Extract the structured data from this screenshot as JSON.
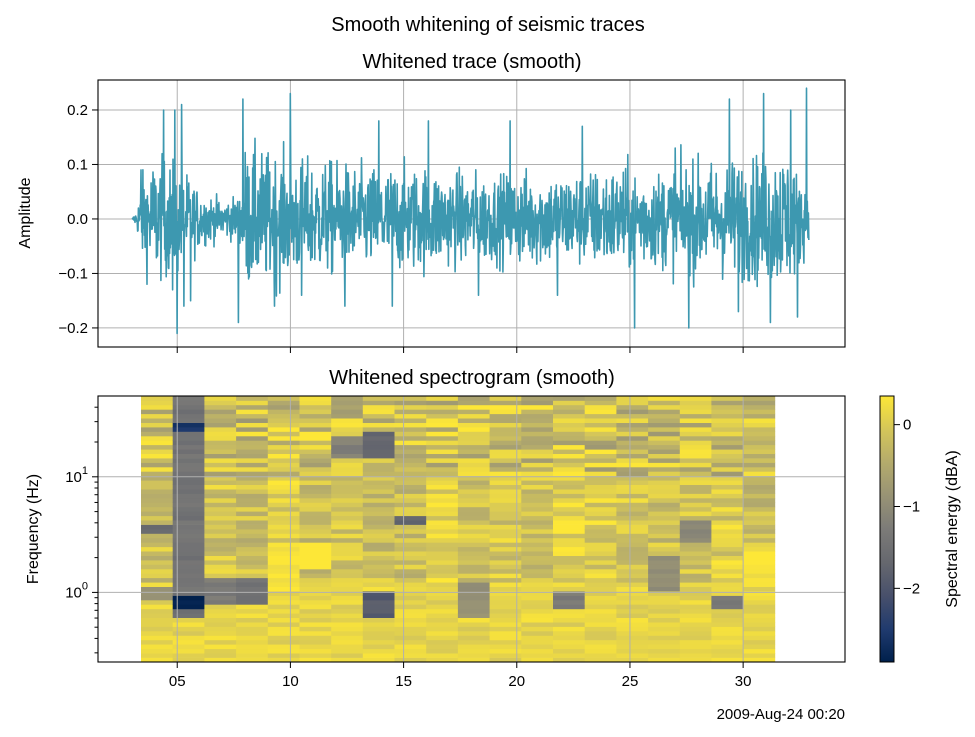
{
  "figure": {
    "suptitle": "Smooth whitening of seismic traces",
    "date_label": "2009-Aug-24 00:20"
  },
  "chart_data": [
    {
      "type": "line",
      "title": "Whitened trace (smooth)",
      "ylabel": "Amplitude",
      "xlabel": "",
      "xlim": [
        1.5,
        34.5
      ],
      "ylim": [
        -0.235,
        0.255
      ],
      "xticks": [
        5,
        10,
        15,
        20,
        25,
        30
      ],
      "xtick_labels_shown": false,
      "yticks": [
        -0.2,
        -0.1,
        0.0,
        0.1,
        0.2
      ],
      "ytick_labels": [
        "−0.2",
        "−0.1",
        "0.0",
        "0.1",
        "0.2"
      ],
      "grid": true,
      "color": "#3d98b0",
      "signal": {
        "start": 3.0,
        "end": 32.9,
        "samples": 1800,
        "envelope_x": [
          3.0,
          3.2,
          3.5,
          4.0,
          5.0,
          6.0,
          7.0,
          7.8,
          8.0,
          9.0,
          10.0,
          11.0,
          12.0,
          13.0,
          14.0,
          15.0,
          16.0,
          17.0,
          18.0,
          19.0,
          20.0,
          21.0,
          22.0,
          23.0,
          24.0,
          25.0,
          26.0,
          27.0,
          28.0,
          29.0,
          30.0,
          31.0,
          32.0,
          32.9
        ],
        "envelope_y": [
          0.0,
          0.02,
          0.1,
          0.13,
          0.12,
          0.06,
          0.04,
          0.05,
          0.15,
          0.14,
          0.13,
          0.12,
          0.12,
          0.11,
          0.11,
          0.11,
          0.11,
          0.1,
          0.1,
          0.09,
          0.1,
          0.1,
          0.1,
          0.1,
          0.11,
          0.11,
          0.1,
          0.11,
          0.12,
          0.12,
          0.13,
          0.14,
          0.15,
          0.06
        ],
        "peaks": [
          {
            "x": 3.4,
            "y": 0.09
          },
          {
            "x": 4.4,
            "y": 0.2
          },
          {
            "x": 4.8,
            "y": -0.13
          },
          {
            "x": 4.9,
            "y": 0.2
          },
          {
            "x": 5.3,
            "y": -0.16
          },
          {
            "x": 5.0,
            "y": -0.21
          },
          {
            "x": 5.2,
            "y": 0.21
          },
          {
            "x": 5.6,
            "y": -0.15
          },
          {
            "x": 7.7,
            "y": -0.19
          },
          {
            "x": 7.9,
            "y": 0.22
          },
          {
            "x": 9.3,
            "y": -0.16
          },
          {
            "x": 10.0,
            "y": 0.23
          },
          {
            "x": 10.5,
            "y": -0.14
          },
          {
            "x": 12.4,
            "y": -0.16
          },
          {
            "x": 13.9,
            "y": 0.18
          },
          {
            "x": 14.5,
            "y": -0.16
          },
          {
            "x": 16.1,
            "y": 0.18
          },
          {
            "x": 18.3,
            "y": -0.14
          },
          {
            "x": 19.7,
            "y": 0.18
          },
          {
            "x": 21.8,
            "y": -0.14
          },
          {
            "x": 22.9,
            "y": 0.17
          },
          {
            "x": 25.2,
            "y": -0.2
          },
          {
            "x": 27.0,
            "y": 0.13
          },
          {
            "x": 27.6,
            "y": -0.2
          },
          {
            "x": 29.4,
            "y": 0.22
          },
          {
            "x": 29.8,
            "y": -0.17
          },
          {
            "x": 30.9,
            "y": 0.23
          },
          {
            "x": 31.2,
            "y": -0.19
          },
          {
            "x": 32.1,
            "y": 0.2
          },
          {
            "x": 32.4,
            "y": -0.18
          },
          {
            "x": 32.8,
            "y": 0.24
          }
        ]
      }
    },
    {
      "type": "heatmap",
      "title": "Whitened spectrogram (smooth)",
      "ylabel": "Frequency (Hz)",
      "xlabel": "",
      "yscale": "log",
      "xlim": [
        1.5,
        34.5
      ],
      "ylim": [
        0.25,
        50
      ],
      "xticks": [
        5,
        10,
        15,
        20,
        25,
        30
      ],
      "xtick_labels": [
        "05",
        "10",
        "15",
        "20",
        "25",
        "30"
      ],
      "yticks_major": [
        1,
        10
      ],
      "ytick_labels": [
        {
          "base": "10",
          "exp": "0"
        },
        {
          "base": "10",
          "exp": "1"
        }
      ],
      "grid": true,
      "colormap": "cividis",
      "time_start": 3.4,
      "time_bin": 1.4,
      "time_bins": 20,
      "freq_low": 0.25,
      "freq_high": 50,
      "freq_bins": 60,
      "colorbar": {
        "label": "Spectral energy (dBA)",
        "vmin": -2.9,
        "vmax": 0.35,
        "ticks": [
          0,
          -1,
          -2
        ],
        "tick_labels": [
          "0",
          "−1",
          "−2"
        ]
      },
      "anomalies": [
        {
          "t": 2,
          "f_lo": 0.6,
          "f_hi": 50,
          "v": -1.45
        },
        {
          "t": 2,
          "f_lo": 0.75,
          "f_hi": 0.95,
          "v": -2.9
        },
        {
          "t": 2,
          "f_lo": 25,
          "f_hi": 30,
          "v": -2.6
        },
        {
          "t": 1,
          "f_lo": 0.85,
          "f_hi": 1.15,
          "v": -0.9
        },
        {
          "t": 1,
          "f_lo": 3.2,
          "f_hi": 3.8,
          "v": -1.7
        },
        {
          "t": 3,
          "f_lo": 0.8,
          "f_hi": 1.3,
          "v": -1.3
        },
        {
          "t": 4,
          "f_lo": 0.8,
          "f_hi": 1.3,
          "v": -1.5
        },
        {
          "t": 5,
          "f_lo": 1.0,
          "f_hi": 2.5,
          "v": 0.3
        },
        {
          "t": 5,
          "f_lo": 8.5,
          "f_hi": 9.5,
          "v": 0.35
        },
        {
          "t": 6,
          "f_lo": 1.6,
          "f_hi": 2.6,
          "v": 0.45
        },
        {
          "t": 8,
          "f_lo": 0.6,
          "f_hi": 1.0,
          "v": -1.9
        },
        {
          "t": 8,
          "f_lo": 15,
          "f_hi": 25,
          "v": -1.7
        },
        {
          "t": 7,
          "f_lo": 15,
          "f_hi": 22,
          "v": -1.2
        },
        {
          "t": 9,
          "f_lo": 4,
          "f_hi": 4.6,
          "v": -1.7
        },
        {
          "t": 11,
          "f_lo": 0.6,
          "f_hi": 1.2,
          "v": -0.9
        },
        {
          "t": 14,
          "f_lo": 0.75,
          "f_hi": 1.0,
          "v": -1.3
        },
        {
          "t": 14,
          "f_lo": 2.3,
          "f_hi": 3.0,
          "v": 0.3
        },
        {
          "t": 17,
          "f_lo": 1.0,
          "f_hi": 2.0,
          "v": -1.0
        },
        {
          "t": 18,
          "f_lo": 2.6,
          "f_hi": 4.2,
          "v": -1.1
        },
        {
          "t": 19,
          "f_lo": 0.7,
          "f_hi": 0.95,
          "v": -1.4
        },
        {
          "t": 20,
          "f_lo": 1.2,
          "f_hi": 2.5,
          "v": 0.3
        }
      ]
    }
  ]
}
